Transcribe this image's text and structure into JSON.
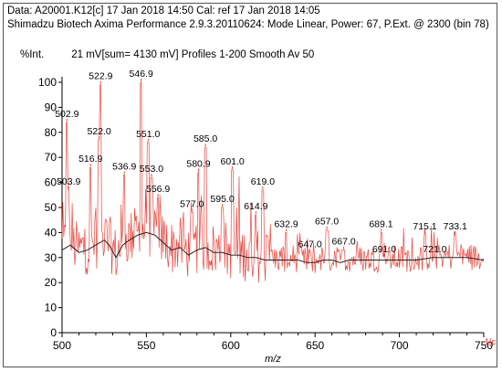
{
  "header": {
    "line1": "Data: A20001.K12[c] 17 Jan 2018 14:50 Cal: ref 17 Jan 2018 14:05",
    "line2": "Shimadzu Biotech Axima Performance 2.9.3.20110624: Mode Linear, Power: 67, P.Ext. @ 2300 (bin 78)",
    "intensity_label": "%Int.",
    "intensity_info": "21 mV[sum= 4130 mV]  Profiles 1-200 Smooth Av 50"
  },
  "chart_data": {
    "type": "line",
    "xlabel": "m/z",
    "ylabel": "%Int.",
    "xlim": [
      500,
      752
    ],
    "ylim": [
      0,
      100
    ],
    "x_ticks": [
      500,
      550,
      600,
      650,
      700,
      750
    ],
    "y_ticks": [
      0,
      10,
      20,
      30,
      40,
      50,
      60,
      70,
      80,
      90,
      100
    ],
    "grid": false,
    "end_marker": "1[c",
    "colors": {
      "spectrum": "#e8473f",
      "baseline": "#222222",
      "label_marker": "#e8473f"
    },
    "peaks": [
      {
        "x": 502.9,
        "y": 84,
        "label": "502.9"
      },
      {
        "x": 503.9,
        "y": 57,
        "label": "503.9"
      },
      {
        "x": 516.9,
        "y": 66,
        "label": "516.9"
      },
      {
        "x": 522.0,
        "y": 77,
        "label": "522.0"
      },
      {
        "x": 522.9,
        "y": 99,
        "label": "522.9"
      },
      {
        "x": 536.9,
        "y": 63,
        "label": "536.9"
      },
      {
        "x": 546.9,
        "y": 100,
        "label": "546.9"
      },
      {
        "x": 551.0,
        "y": 76,
        "label": "551.0"
      },
      {
        "x": 553.0,
        "y": 62,
        "label": "553.0"
      },
      {
        "x": 556.9,
        "y": 54,
        "label": "556.9"
      },
      {
        "x": 577.0,
        "y": 48,
        "label": "577.0"
      },
      {
        "x": 580.9,
        "y": 64,
        "label": "580.9"
      },
      {
        "x": 585.0,
        "y": 74,
        "label": "585.0"
      },
      {
        "x": 595.0,
        "y": 50,
        "label": "595.0"
      },
      {
        "x": 601.0,
        "y": 65,
        "label": "601.0"
      },
      {
        "x": 614.9,
        "y": 47,
        "label": "614.9"
      },
      {
        "x": 619.0,
        "y": 57,
        "label": "619.0"
      },
      {
        "x": 632.9,
        "y": 40,
        "label": "632.9"
      },
      {
        "x": 647.0,
        "y": 32,
        "label": "647.0"
      },
      {
        "x": 657.0,
        "y": 41,
        "label": "657.0"
      },
      {
        "x": 667.0,
        "y": 33,
        "label": "667.0"
      },
      {
        "x": 689.1,
        "y": 40,
        "label": "689.1"
      },
      {
        "x": 691.0,
        "y": 30,
        "label": "691.0"
      },
      {
        "x": 715.1,
        "y": 39,
        "label": "715.1"
      },
      {
        "x": 721.0,
        "y": 30,
        "label": "721.0"
      },
      {
        "x": 733.1,
        "y": 39,
        "label": "733.1"
      }
    ],
    "series": [
      {
        "kind": "smoothed_baseline",
        "points": [
          [
            500,
            33
          ],
          [
            505,
            35
          ],
          [
            510,
            32
          ],
          [
            515,
            33
          ],
          [
            520,
            35
          ],
          [
            525,
            37
          ],
          [
            528,
            35
          ],
          [
            532,
            30
          ],
          [
            536,
            35
          ],
          [
            540,
            37
          ],
          [
            545,
            39
          ],
          [
            550,
            40
          ],
          [
            555,
            39
          ],
          [
            560,
            36
          ],
          [
            565,
            33
          ],
          [
            570,
            34
          ],
          [
            575,
            31
          ],
          [
            580,
            33
          ],
          [
            585,
            34
          ],
          [
            590,
            32
          ],
          [
            595,
            32
          ],
          [
            600,
            31
          ],
          [
            605,
            31
          ],
          [
            610,
            30
          ],
          [
            615,
            30
          ],
          [
            620,
            29
          ],
          [
            630,
            29
          ],
          [
            640,
            29
          ],
          [
            645,
            28
          ],
          [
            650,
            28
          ],
          [
            655,
            29
          ],
          [
            660,
            29
          ],
          [
            665,
            28
          ],
          [
            670,
            29
          ],
          [
            680,
            29
          ],
          [
            690,
            29
          ],
          [
            700,
            29
          ],
          [
            710,
            29
          ],
          [
            720,
            30
          ],
          [
            730,
            30
          ],
          [
            740,
            30
          ],
          [
            750,
            29
          ]
        ]
      }
    ]
  }
}
